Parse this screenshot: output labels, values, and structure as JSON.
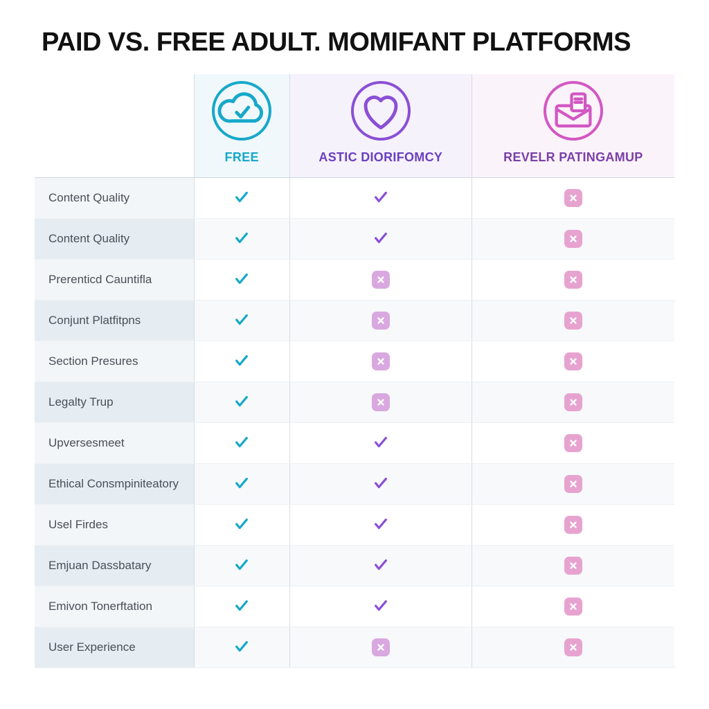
{
  "title": "PAID VS. FREE ADULT. MOMIFANT PLATFORMS",
  "title_color": "#111111",
  "title_fontsize": 38,
  "background_color": "#ffffff",
  "grid_color": "#d8dde3",
  "row_label_bg_odd": "#e6edf2",
  "row_label_bg_even": "#f2f6f9",
  "cell_bg_odd": "#f7f9fb",
  "cell_bg_even": "#ffffff",
  "label_text_color": "#4a4f57",
  "label_fontsize": 17,
  "columns": [
    {
      "id": "free",
      "label": "Free",
      "label_color": "#17a8c9",
      "ring_color": "#17a8c9",
      "header_tint": "#f0f8fb",
      "icon": "cloud-check",
      "check_color": "#17a8c9",
      "cross_bg": "#e7a3d0",
      "cross_x": "#ffffff"
    },
    {
      "id": "astic",
      "label": "Astic Diorifomcy",
      "label_color": "#6b3fbf",
      "ring_color": "#8a4fd6",
      "header_tint": "#f6f2fb",
      "icon": "heart",
      "check_color": "#8a4fd6",
      "cross_bg": "#d9a8e0",
      "cross_x": "#ffffff"
    },
    {
      "id": "revelr",
      "label": "Revelr Patingamup",
      "label_color": "#7a3fa8",
      "ring_color": "#d257c2",
      "header_tint": "#fbf3fa",
      "icon": "envelope-doc",
      "check_color": "#d257c2",
      "cross_bg": "#e7a3d0",
      "cross_x": "#ffffff"
    }
  ],
  "features": [
    "Content Quality",
    "Content Quality",
    "Prerenticd Cauntifla",
    "Conjunt Platfitpns",
    "Section Presures",
    "Legalty Trup",
    "Upversesmeet",
    "Ethical Consmpiniteatory",
    "Usel Firdes",
    "Emjuan Dassbatary",
    "Emivon Tonerftation",
    "User Experience"
  ],
  "matrix": [
    [
      "check",
      "check",
      "cross"
    ],
    [
      "check",
      "check",
      "cross"
    ],
    [
      "check",
      "cross",
      "cross"
    ],
    [
      "check",
      "cross",
      "cross"
    ],
    [
      "check",
      "cross",
      "cross"
    ],
    [
      "check",
      "cross",
      "cross"
    ],
    [
      "check",
      "check",
      "cross"
    ],
    [
      "check",
      "check",
      "cross"
    ],
    [
      "check",
      "check",
      "cross"
    ],
    [
      "check",
      "check",
      "cross"
    ],
    [
      "check",
      "check",
      "cross"
    ],
    [
      "check",
      "cross",
      "cross"
    ]
  ]
}
